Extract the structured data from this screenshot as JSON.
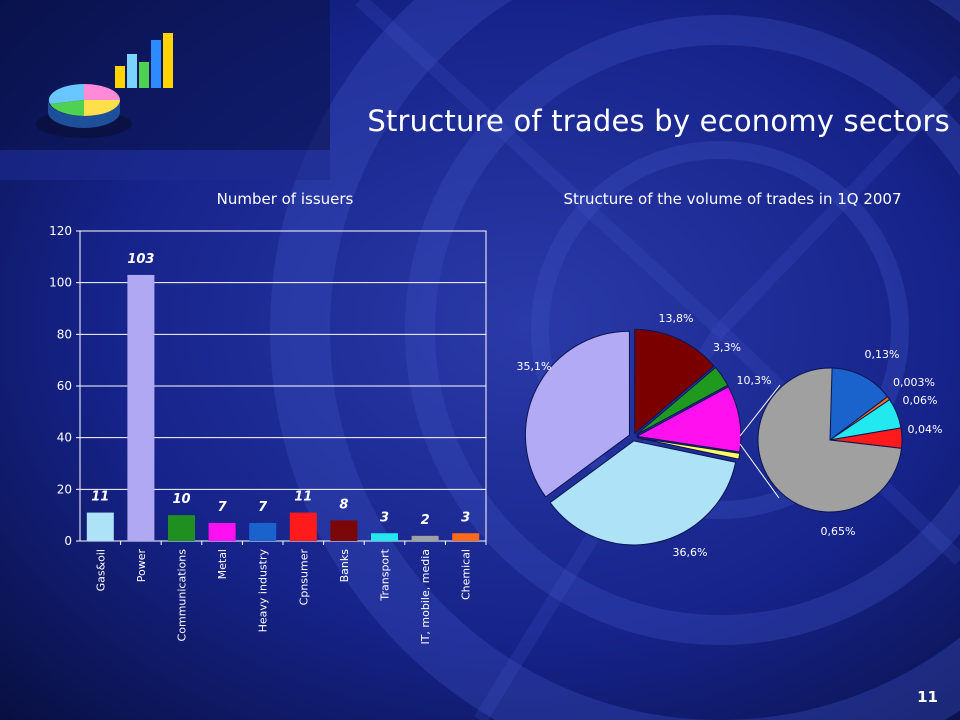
{
  "slide": {
    "title": "Structure of trades by economy sectors",
    "page_number": "11",
    "logo_icon": "chart-logo-icon",
    "background_color": "#0b1550"
  },
  "chart_data": [
    {
      "type": "bar",
      "title": "Number of issuers",
      "categories": [
        "Gas&oil",
        "Power",
        "Communications",
        "Metal",
        "Heavy industry",
        "Cpnsumer",
        "Banks",
        "Transport",
        "IT, mobile, media",
        "Chemical"
      ],
      "values": [
        11,
        103,
        10,
        7,
        7,
        11,
        8,
        3,
        2,
        3
      ],
      "data_labels": [
        "11",
        "103",
        "10",
        "7",
        "7",
        "11",
        "8",
        "3",
        "2",
        "3"
      ],
      "colors": [
        "#aee3f7",
        "#b0a8f2",
        "#1f8f1f",
        "#ff10f0",
        "#1a63cc",
        "#ff1b1b",
        "#7a0808",
        "#22e8f0",
        "#a0a0a0",
        "#ff6a1a"
      ],
      "ylim": [
        0,
        120
      ],
      "yticks": [
        0,
        20,
        40,
        60,
        80,
        100,
        120
      ],
      "ytick_labels": [
        "0",
        "20",
        "40",
        "60",
        "80",
        "100",
        "120"
      ],
      "grid": true,
      "legend": "none"
    },
    {
      "type": "pie",
      "title": "Structure of the volume of trades in 1Q 2007",
      "slices": [
        {
          "label": "13,8%",
          "value": 13.8,
          "color": "#7a0000"
        },
        {
          "label": "3,3%",
          "value": 3.3,
          "color": "#1f9a1f"
        },
        {
          "label": "10,3%",
          "value": 10.3,
          "color": "#ff10ee"
        },
        {
          "label": "",
          "value": 0.9,
          "color": "#ffff60"
        },
        {
          "label": "36,6%",
          "value": 36.6,
          "color": "#aee3f7"
        },
        {
          "label": "35,1%",
          "value": 35.1,
          "color": "#b3aaf5"
        }
      ],
      "breakout_of_pie": {
        "slices": [
          {
            "label": "0,13%",
            "value": 0.13,
            "color": "#1a63cc"
          },
          {
            "label": "0,003%",
            "value": 0.003,
            "color": "#ff6a1a"
          },
          {
            "label": "0,06%",
            "value": 0.06,
            "color": "#22e8f0"
          },
          {
            "label": "0,04%",
            "value": 0.04,
            "color": "#ff1b1b"
          },
          {
            "label": "0,65%",
            "value": 0.65,
            "color": "#a0a0a0"
          }
        ]
      },
      "legend": "none"
    }
  ]
}
